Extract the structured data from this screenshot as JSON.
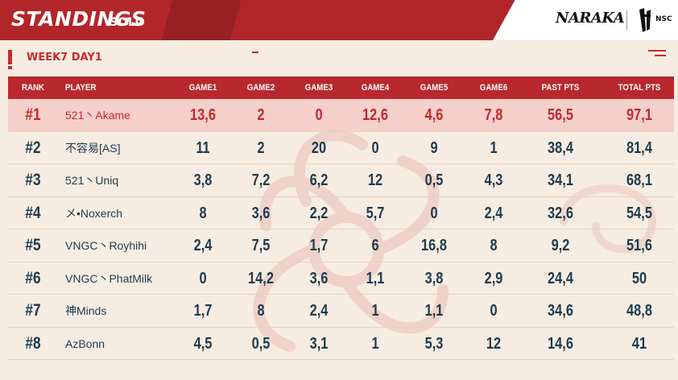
{
  "header": {
    "title": "STANDINGS",
    "subtitle": "SOLO",
    "brand": "NARAKA",
    "sub_brand": "NSC",
    "accent_color": "#b8282d"
  },
  "week": {
    "label": "WEEK7  DAY1"
  },
  "table": {
    "columns": [
      "RANK",
      "PLAYER",
      "GAME1",
      "GAME2",
      "GAME3",
      "GAME4",
      "GAME5",
      "GAME6",
      "PAST PTS",
      "TOTAL PTS"
    ],
    "rows": [
      {
        "rank": "#1",
        "player": "521丶Akame",
        "g1": "13,6",
        "g2": "2",
        "g3": "0",
        "g4": "12,6",
        "g5": "4,6",
        "g6": "7,8",
        "past": "56,5",
        "total": "97,1"
      },
      {
        "rank": "#2",
        "player": "不容易[AS]",
        "g1": "11",
        "g2": "2",
        "g3": "20",
        "g4": "0",
        "g5": "9",
        "g6": "1",
        "past": "38,4",
        "total": "81,4"
      },
      {
        "rank": "#3",
        "player": "521丶Uniq",
        "g1": "3,8",
        "g2": "7,2",
        "g3": "6,2",
        "g4": "12",
        "g5": "0,5",
        "g6": "4,3",
        "past": "34,1",
        "total": "68,1"
      },
      {
        "rank": "#4",
        "player": "メ•Noxerch",
        "g1": "8",
        "g2": "3,6",
        "g3": "2,2",
        "g4": "5,7",
        "g5": "0",
        "g6": "2,4",
        "past": "32,6",
        "total": "54,5"
      },
      {
        "rank": "#5",
        "player": "VNGC丶Royhihi",
        "g1": "2,4",
        "g2": "7,5",
        "g3": "1,7",
        "g4": "6",
        "g5": "16,8",
        "g6": "8",
        "past": "9,2",
        "total": "51,6"
      },
      {
        "rank": "#6",
        "player": "VNGC丶PhatMilk",
        "g1": "0",
        "g2": "14,2",
        "g3": "3,6",
        "g4": "1,1",
        "g5": "3,8",
        "g6": "2,9",
        "past": "24,4",
        "total": "50"
      },
      {
        "rank": "#7",
        "player": "神Minds",
        "g1": "1,7",
        "g2": "8",
        "g3": "2,4",
        "g4": "1",
        "g5": "1,1",
        "g6": "0",
        "past": "34,6",
        "total": "48,8"
      },
      {
        "rank": "#8",
        "player": "AzBonn",
        "g1": "4,5",
        "g2": "0,5",
        "g3": "3,1",
        "g4": "1",
        "g5": "5,3",
        "g6": "12",
        "past": "14,6",
        "total": "41"
      }
    ]
  }
}
